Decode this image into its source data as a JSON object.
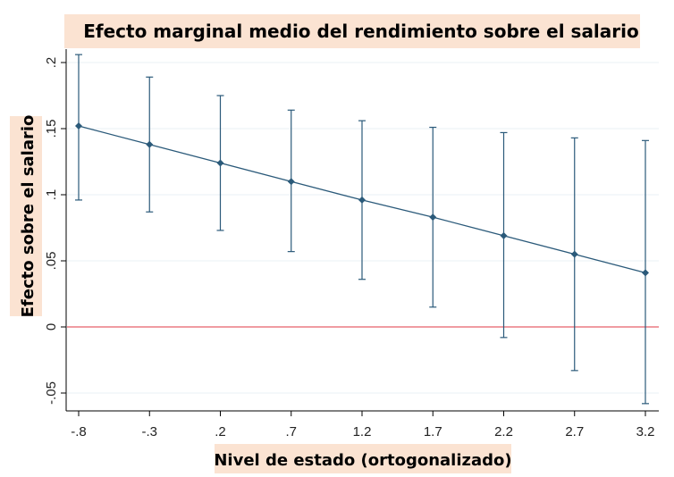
{
  "chart_data": {
    "type": "line",
    "title": "Efecto marginal medio del rendimiento sobre el salario",
    "xlabel": "Nivel de estado (ortogonalizado)",
    "ylabel": "Efecto sobre el salario",
    "x_ticks": [
      -0.8,
      -0.3,
      0.2,
      0.7,
      1.2,
      1.7,
      2.2,
      2.7,
      3.2
    ],
    "x_tick_labels": [
      "-.8",
      "-.3",
      ".2",
      ".7",
      "1.2",
      "1.7",
      "2.2",
      "2.7",
      "3.2"
    ],
    "y_ticks": [
      -0.05,
      0,
      0.05,
      0.1,
      0.15,
      0.2
    ],
    "y_tick_labels": [
      "-.05",
      "0",
      ".05",
      ".1",
      ".15",
      ".2"
    ],
    "xlim": [
      -0.8,
      3.2
    ],
    "ylim": [
      -0.065,
      0.21
    ],
    "grid": true,
    "reference_line": {
      "y": 0,
      "color": "#e8606a"
    },
    "series": [
      {
        "color": "#2b5a7a",
        "x": [
          -0.8,
          -0.3,
          0.2,
          0.7,
          1.2,
          1.7,
          2.2,
          2.7,
          3.2
        ],
        "y": [
          0.152,
          0.138,
          0.124,
          0.11,
          0.096,
          0.083,
          0.069,
          0.055,
          0.041
        ],
        "ci_low": [
          0.096,
          0.087,
          0.073,
          0.057,
          0.036,
          0.015,
          -0.008,
          -0.033,
          -0.058
        ],
        "ci_high": [
          0.206,
          0.189,
          0.175,
          0.164,
          0.156,
          0.151,
          0.147,
          0.143,
          0.141
        ]
      }
    ]
  }
}
